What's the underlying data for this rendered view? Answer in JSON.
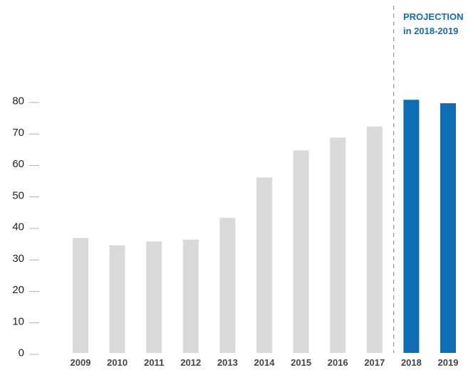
{
  "chart_data": {
    "type": "bar",
    "categories": [
      "2009",
      "2010",
      "2011",
      "2012",
      "2013",
      "2014",
      "2015",
      "2016",
      "2017",
      "2018",
      "2019"
    ],
    "values": [
      36.5,
      34.2,
      35.4,
      36.0,
      42.9,
      55.7,
      64.3,
      68.4,
      71.9,
      80.4,
      79.3
    ],
    "projected": [
      false,
      false,
      false,
      false,
      false,
      false,
      false,
      false,
      false,
      true,
      true
    ],
    "ylim": [
      0,
      80
    ],
    "yticks": [
      0,
      10,
      20,
      30,
      40,
      50,
      60,
      70,
      80
    ],
    "annotation": {
      "line1": "PROJECTION",
      "line2": "in 2018-2019"
    },
    "colors": {
      "actual": "#d9d9d9",
      "projection": "#0f6db3",
      "tick": "#b3b3b3",
      "divider": "#9a9a9a",
      "annotation": "#0f6db3"
    }
  }
}
